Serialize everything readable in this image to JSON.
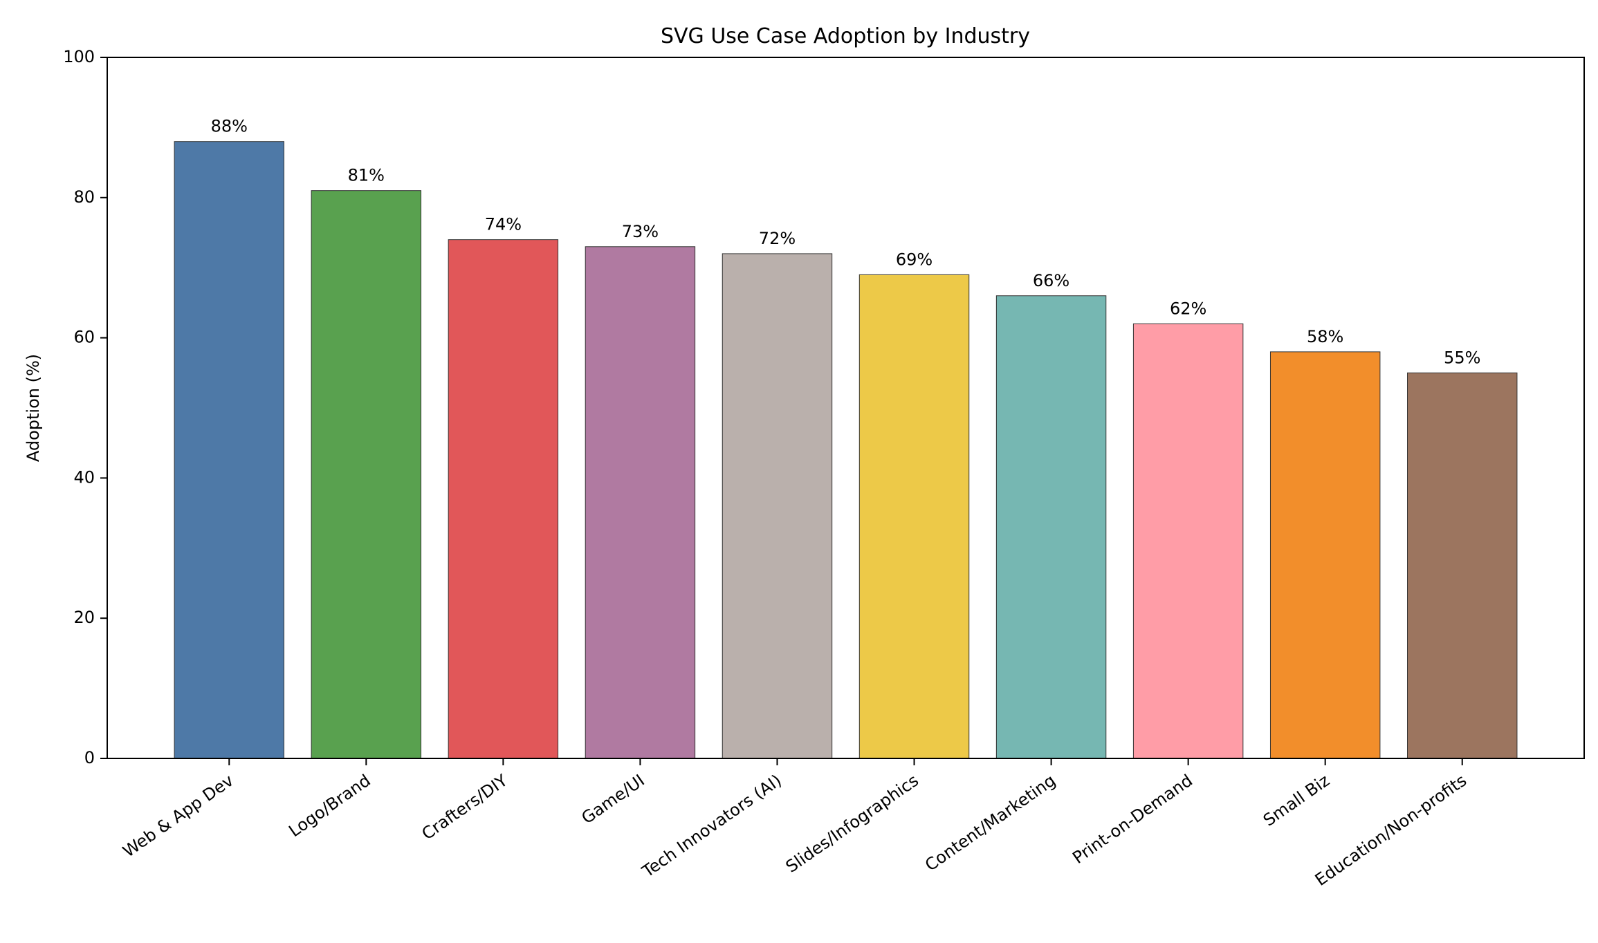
{
  "chart_data": {
    "type": "bar",
    "title": "SVG Use Case Adoption by Industry",
    "xlabel": "",
    "ylabel": "Adoption (%)",
    "ylim": [
      0,
      100
    ],
    "yticks": [
      "0",
      "20",
      "40",
      "60",
      "80",
      "100"
    ],
    "grid": false,
    "categories": [
      "Web & App Dev",
      "Logo/Brand",
      "Crafters/DIY",
      "Game/UI",
      "Tech Innovators (AI)",
      "Slides/Infographics",
      "Content/Marketing",
      "Print-on-Demand",
      "Small Biz",
      "Education/Non-profits"
    ],
    "values": [
      88,
      81,
      74,
      73,
      72,
      69,
      66,
      62,
      58,
      55
    ],
    "data_labels": [
      "88%",
      "81%",
      "74%",
      "73%",
      "72%",
      "69%",
      "66%",
      "62%",
      "58%",
      "55%"
    ],
    "colors": [
      "#4e79a7",
      "#59a14f",
      "#e15759",
      "#b07aa1",
      "#bab0ac",
      "#edc948",
      "#76b7b2",
      "#ff9da7",
      "#f28e2b",
      "#9c755f"
    ]
  }
}
